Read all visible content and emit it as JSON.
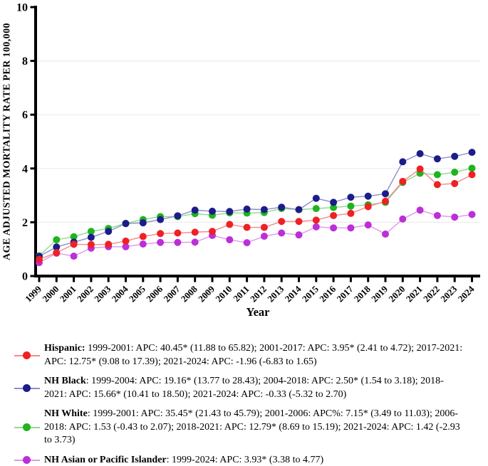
{
  "chart_data": {
    "type": "line",
    "title": "",
    "xlabel": "Year",
    "ylabel": "AGE ADJUSTED MORTALITY RATE PER 100,000",
    "ylim": [
      0,
      10
    ],
    "yticks": [
      0,
      2,
      4,
      6,
      8,
      10
    ],
    "grid": true,
    "legend_position": "bottom",
    "x": [
      1999,
      2000,
      2001,
      2002,
      2003,
      2004,
      2005,
      2006,
      2007,
      2008,
      2009,
      2010,
      2011,
      2012,
      2013,
      2014,
      2015,
      2016,
      2017,
      2018,
      2019,
      2020,
      2021,
      2022,
      2023,
      2024
    ],
    "series": [
      {
        "name": "Hispanic",
        "color": "#ee2124",
        "line_color": "#f5898b",
        "values": [
          0.62,
          0.87,
          1.18,
          1.17,
          1.18,
          1.3,
          1.47,
          1.58,
          1.6,
          1.63,
          1.66,
          1.92,
          1.81,
          1.81,
          2.03,
          2.03,
          2.08,
          2.25,
          2.33,
          2.58,
          2.78,
          3.52,
          3.98,
          3.4,
          3.44,
          3.77
        ]
      },
      {
        "name": "NH Black",
        "color": "#1c1c8a",
        "line_color": "#8d8dc7",
        "values": [
          0.73,
          1.08,
          1.26,
          1.44,
          1.66,
          1.95,
          1.98,
          2.1,
          2.24,
          2.45,
          2.41,
          2.4,
          2.49,
          2.47,
          2.56,
          2.47,
          2.89,
          2.74,
          2.93,
          2.97,
          3.06,
          4.25,
          4.55,
          4.36,
          4.45,
          4.6
        ]
      },
      {
        "name": "NH White",
        "color": "#1eb41e",
        "line_color": "#8fd98f",
        "values": [
          0.75,
          1.35,
          1.46,
          1.66,
          1.77,
          1.96,
          2.1,
          2.21,
          2.21,
          2.32,
          2.26,
          2.35,
          2.34,
          2.36,
          2.51,
          2.47,
          2.51,
          2.55,
          2.6,
          2.65,
          2.74,
          3.48,
          3.82,
          3.77,
          3.86,
          4.01
        ]
      },
      {
        "name": "NH Asian or Pacific Islander",
        "color": "#bc2fd8",
        "line_color": "#de98eb",
        "values": [
          0.5,
          0.85,
          0.74,
          1.04,
          1.09,
          1.09,
          1.19,
          1.25,
          1.25,
          1.26,
          1.51,
          1.35,
          1.24,
          1.48,
          1.6,
          1.53,
          1.83,
          1.79,
          1.79,
          1.9,
          1.56,
          2.12,
          2.45,
          2.25,
          2.19,
          2.29
        ]
      }
    ]
  },
  "legend": {
    "entries": [
      {
        "name": "Hispanic:",
        "text": " 1999-2001: APC: 40.45* (11.88 to 65.82); 2001-2017: APC: 3.95* (2.41 to 4.72); 2017-2021: APC: 12.75* (9.08 to 17.39); 2021-2024: APC: -1.96 (-6.83 to 1.65)"
      },
      {
        "name": "NH Black",
        "text": ": 1999-2004: APC: 19.16* (13.77 to 28.43); 2004-2018: APC: 2.50* (1.54 to 3.18); 2018-2021: APC: 15.66* (10.41 to 18.50); 2021-2024: APC: -0.33 (-5.32 to 2.70)"
      },
      {
        "name": "NH White",
        "text": ": 1999-2001: APC: 35.45* (21.43 to 45.79); 2001-2006: APC%: 7.15* (3.49 to 11.03); 2006-2018: APC: 1.53 (-0.43 to 2.07); 2018-2021: APC: 12.79* (8.69 to 15.19); 2021-2024: APC: 1.42 (-2.93 to 3.73)"
      },
      {
        "name": "NH Asian or Pacific Islander",
        "text": ": 1999-2024: APC: 3.93* (3.38 to 4.77)"
      }
    ]
  }
}
